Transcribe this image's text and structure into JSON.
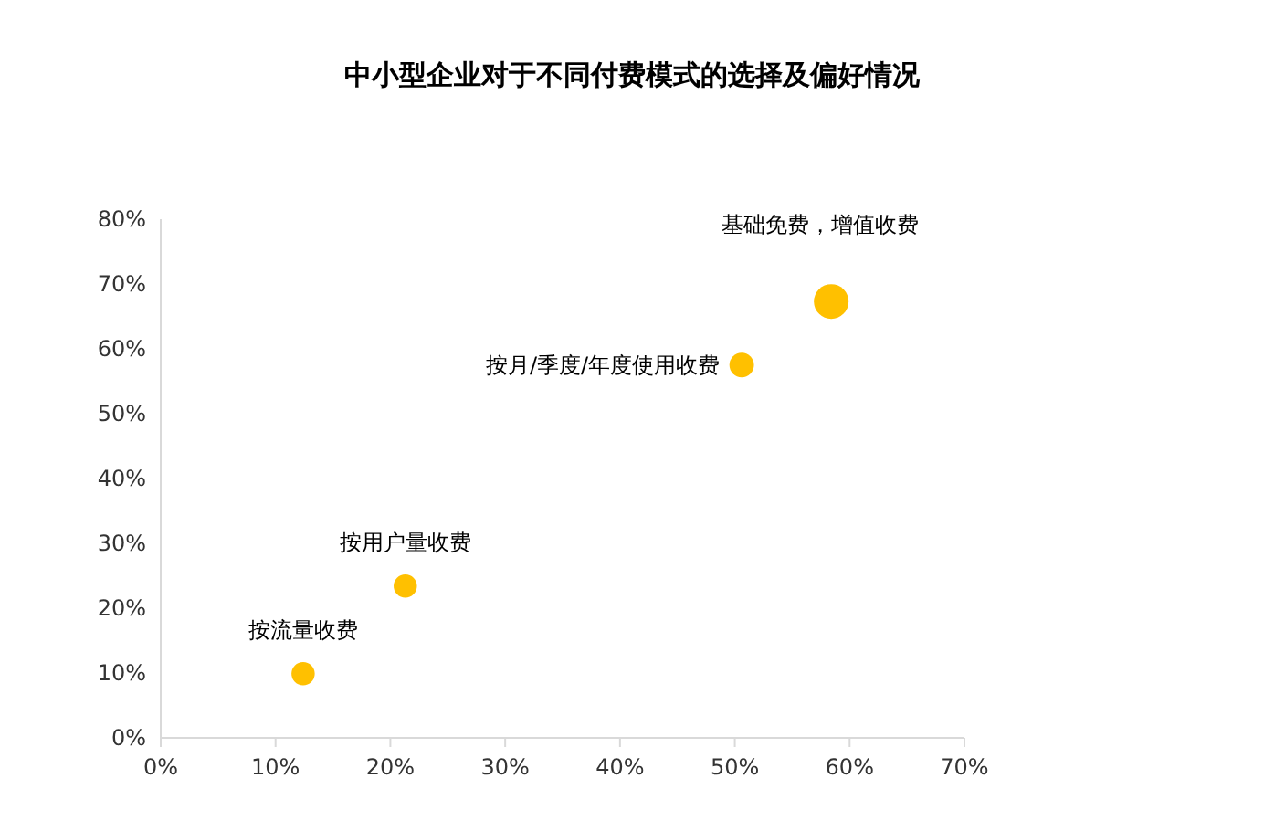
{
  "chart_data": {
    "type": "bubble",
    "title": "中小型企业对于不同付费模式的选择及偏好情况",
    "x": [
      12.4,
      21.3,
      50.6,
      58.4
    ],
    "values": [
      9.9,
      23.4,
      57.5,
      67.3
    ],
    "sizes": [
      0.45,
      0.45,
      0.5,
      1
    ],
    "color": "#ffc000",
    "xlim": [
      0,
      70
    ],
    "xticks": [
      {
        "value": 0,
        "label": "0%"
      },
      {
        "value": 10,
        "label": "10%"
      },
      {
        "value": 20,
        "label": "20%"
      },
      {
        "value": 30,
        "label": "30%"
      },
      {
        "value": 40,
        "label": "40%"
      },
      {
        "value": 50,
        "label": "50%"
      },
      {
        "value": 60,
        "label": "60%"
      },
      {
        "value": 70,
        "label": "70%"
      }
    ],
    "ylim": [
      0,
      80
    ],
    "yticks": [
      {
        "value": 0,
        "label": "0%"
      },
      {
        "value": 10,
        "label": "10%"
      },
      {
        "value": 20,
        "label": "20%"
      },
      {
        "value": 30,
        "label": "30%"
      },
      {
        "value": 40,
        "label": "40%"
      },
      {
        "value": 50,
        "label": "50%"
      },
      {
        "value": 60,
        "label": "60%"
      },
      {
        "value": 70,
        "label": "70%"
      },
      {
        "value": 80,
        "label": "80%"
      }
    ],
    "annotations": [
      {
        "text": "按流量收费",
        "x": 12.4,
        "y": 9.9
      },
      {
        "text": "按用户量收费",
        "x": 21.3,
        "y": 23.4
      },
      {
        "text": "按月/季度/年度使用收费",
        "x": 50.6,
        "y": 57.5
      },
      {
        "text": "基础免费，增值收费",
        "x": 58.4,
        "y": 67.3
      }
    ]
  }
}
